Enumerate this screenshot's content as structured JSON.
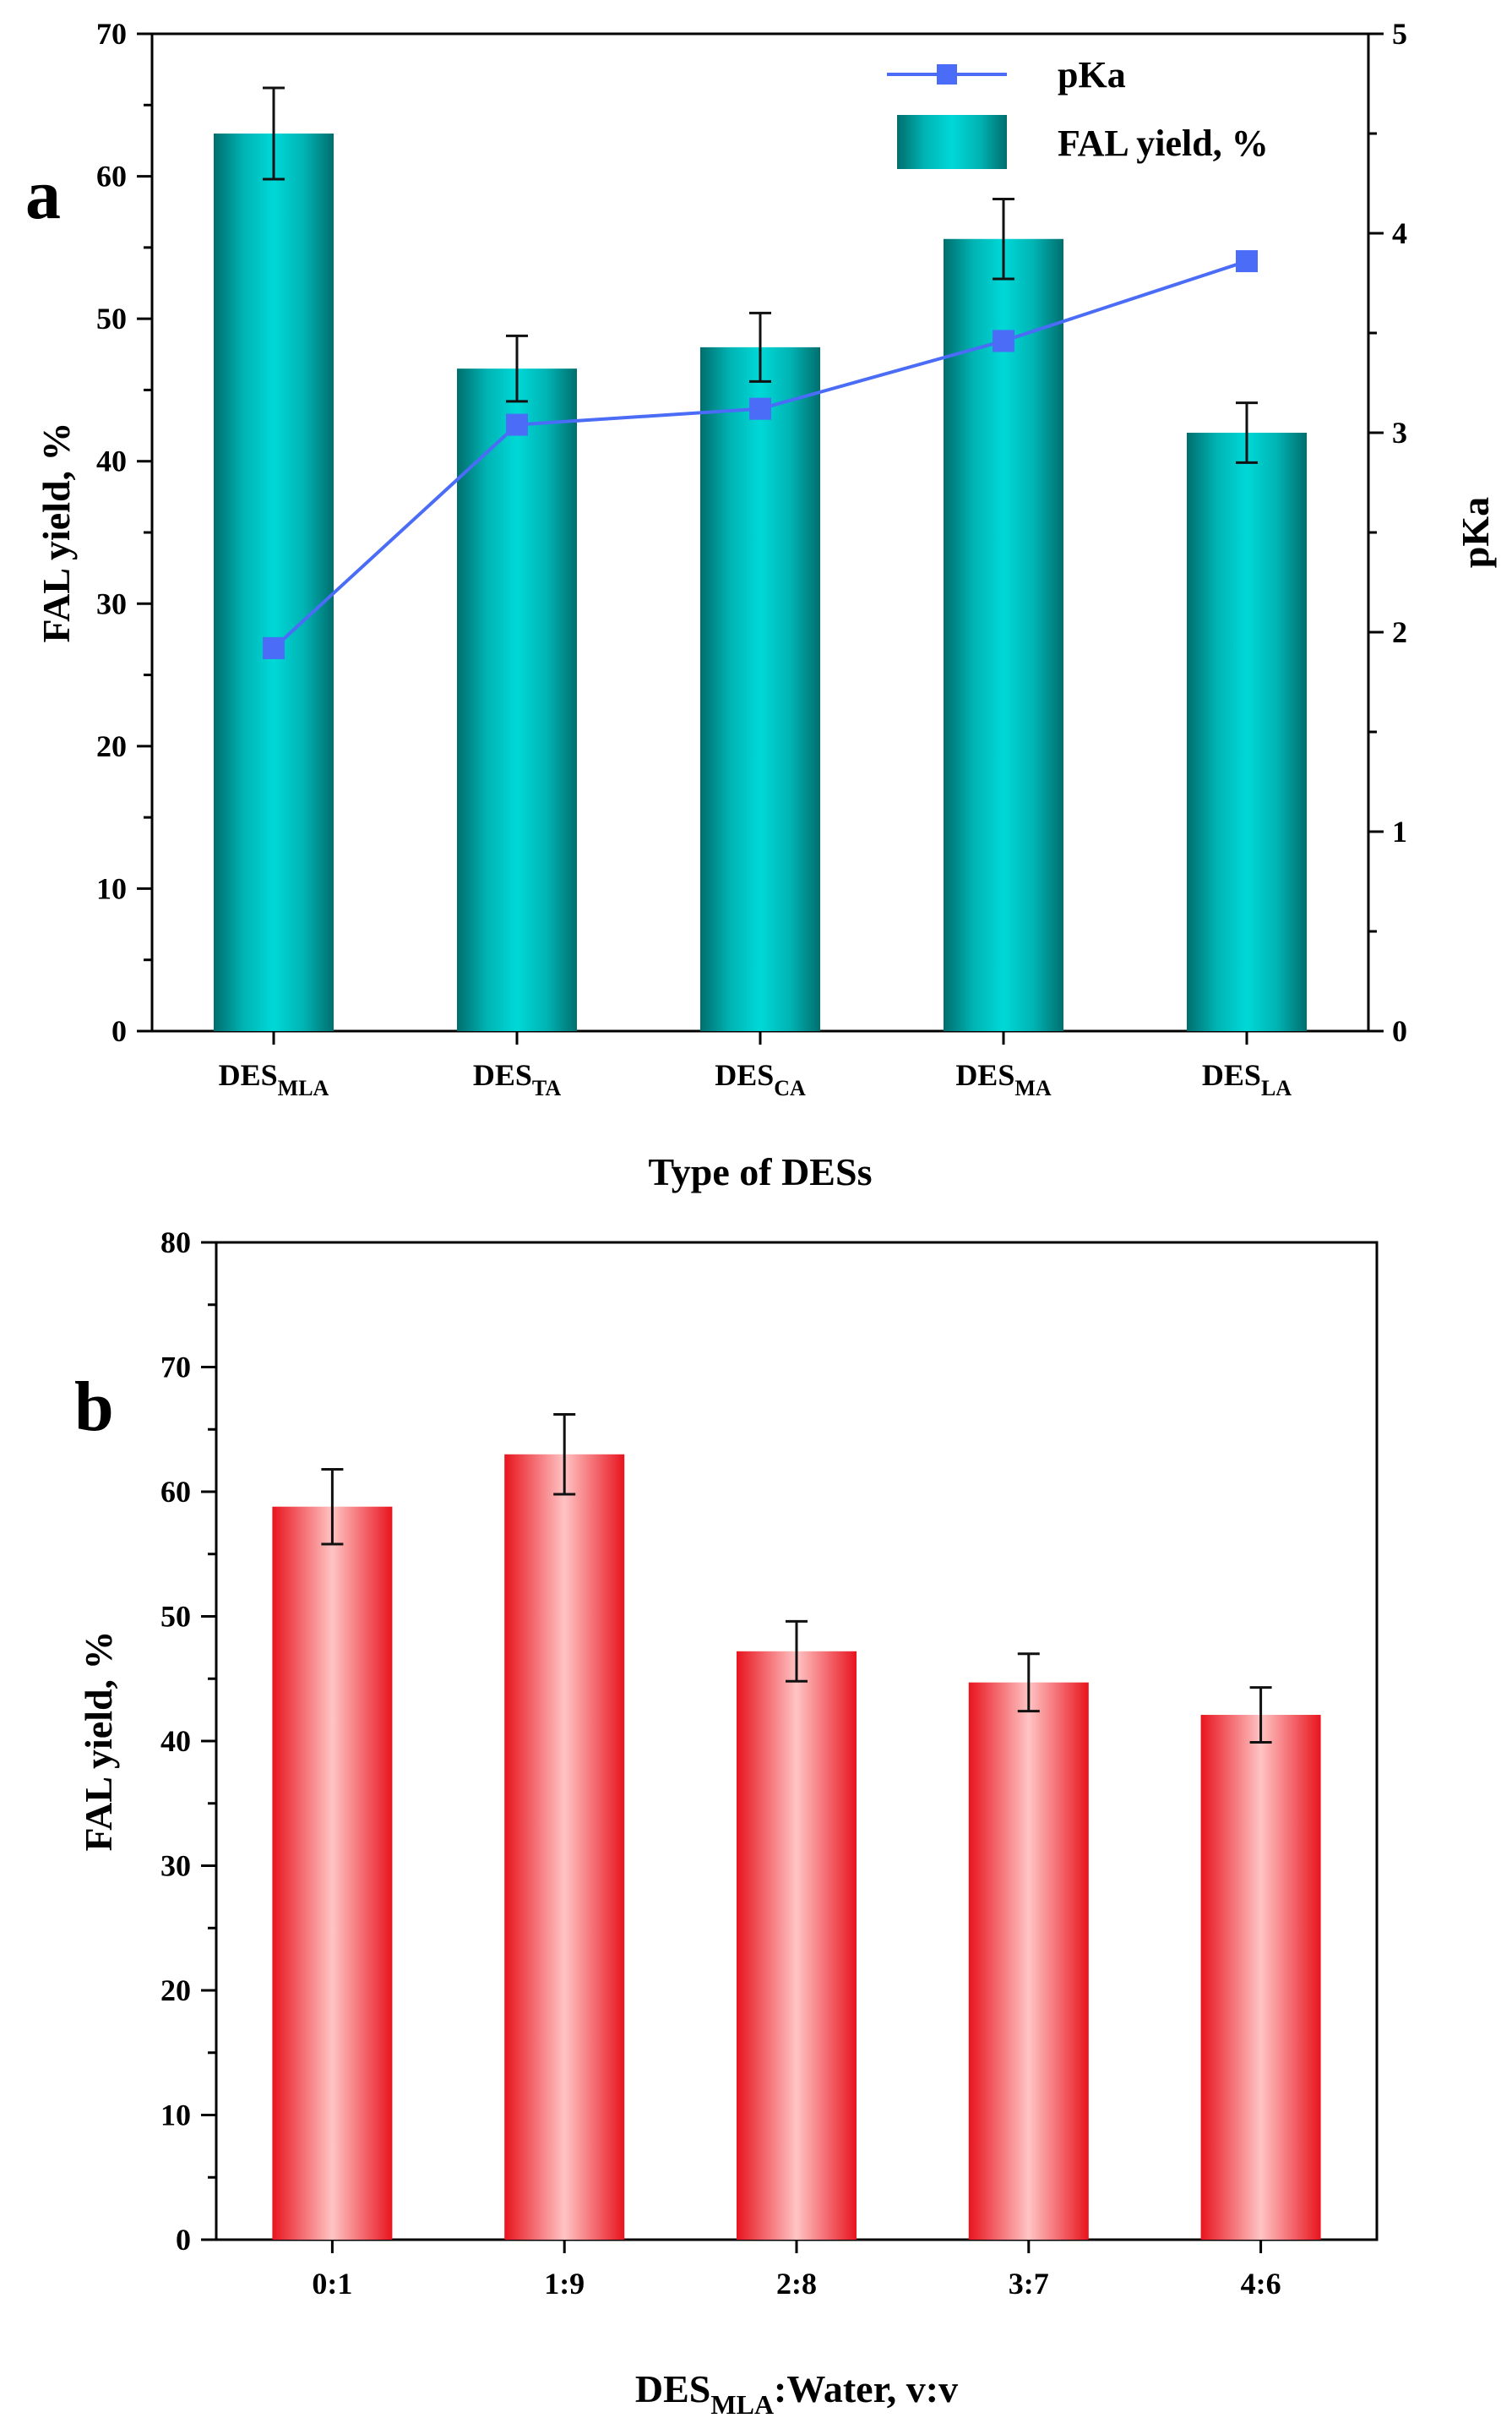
{
  "chart_data": [
    {
      "panel": "a",
      "type": "bar+line",
      "categories": [
        "DES|MLA",
        "DES|TA",
        "DES|CA",
        "DES|MA",
        "DES|LA"
      ],
      "xlabel": "Type of DESs",
      "ylabel": "FAL yield, %",
      "ylim": [
        0,
        70
      ],
      "y_ticks": [
        0,
        10,
        20,
        30,
        40,
        50,
        60,
        70
      ],
      "y2label": "pKa",
      "y2lim": [
        0,
        5
      ],
      "y2_ticks": [
        0,
        1,
        2,
        3,
        4,
        5
      ],
      "series": [
        {
          "name": "FAL yield, %",
          "kind": "bar",
          "axis": "left",
          "values": [
            63.0,
            46.5,
            48.0,
            55.6,
            42.0
          ],
          "errors": [
            3.2,
            2.3,
            2.4,
            2.8,
            2.1
          ],
          "color": "#00c8c8"
        },
        {
          "name": "pKa",
          "kind": "line",
          "axis": "right",
          "values": [
            1.92,
            3.04,
            3.12,
            3.46,
            3.86
          ],
          "color": "#4a6cf7"
        }
      ],
      "legend": [
        "pKa",
        "FAL yield, %"
      ],
      "legend_position": "top-right"
    },
    {
      "panel": "b",
      "type": "bar",
      "categories": [
        "0:1",
        "1:9",
        "2:8",
        "3:7",
        "4:6"
      ],
      "xlabel": "DES|MLA|:Water, v:v",
      "ylabel": "FAL yield, %",
      "ylim": [
        0,
        80
      ],
      "y_ticks": [
        0,
        10,
        20,
        30,
        40,
        50,
        60,
        70,
        80
      ],
      "series": [
        {
          "name": "FAL yield, %",
          "values": [
            58.8,
            63.0,
            47.2,
            44.7,
            42.1
          ],
          "errors": [
            3.0,
            3.2,
            2.4,
            2.3,
            2.2
          ],
          "color": "#ee1c25"
        }
      ]
    }
  ]
}
